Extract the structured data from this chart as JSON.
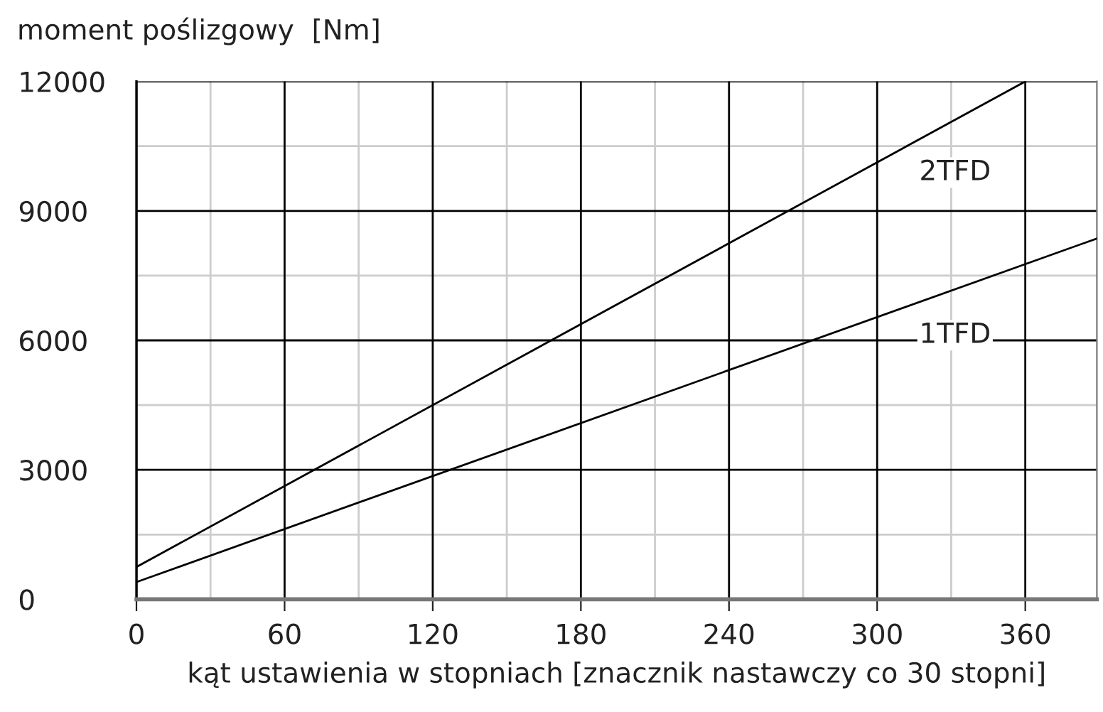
{
  "chart_data": {
    "type": "line",
    "xlabel": "kąt ustawienia w stopniach [znacznik nastawczy co 30 stopni]",
    "ylabel": "moment poślizgowy  [Nm]",
    "series": [
      {
        "name": "2TFD",
        "color": "#000000",
        "x": [
          0,
          360
        ],
        "values": [
          750,
          12000
        ]
      },
      {
        "name": "1TFD",
        "color": "#000000",
        "x": [
          0,
          389
        ],
        "values": [
          400,
          8360
        ]
      }
    ],
    "xlim": [
      0,
      389
    ],
    "ylim": [
      0,
      12000
    ],
    "xticks": [
      0,
      60,
      120,
      180,
      240,
      300,
      360
    ],
    "yticks": [
      0,
      3000,
      6000,
      9000,
      12000
    ],
    "grid": true,
    "marker": "none",
    "line_style": "solid",
    "legend": false
  }
}
